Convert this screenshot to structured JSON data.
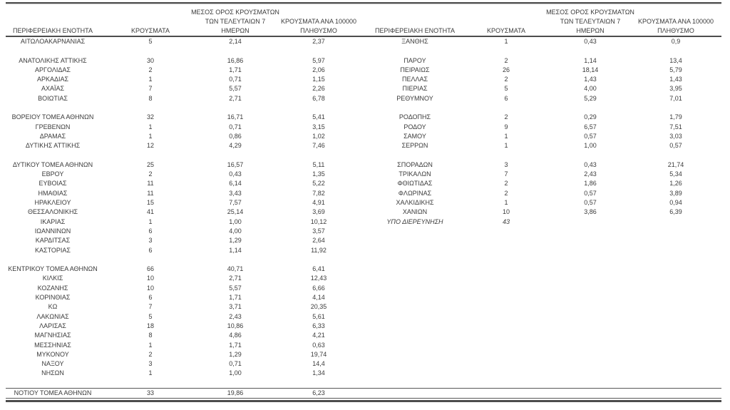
{
  "table": {
    "headers": {
      "region": "ΠΕΡΙΦΕΡΕΙΑΚΗ ΕΝΟΤΗΤΑ",
      "cases": "ΚΡΟΥΣΜΑΤΑ",
      "avg7_l1": "ΜΕΣΟΣ ΟΡΟΣ ΚΡΟΥΣΜΑΤΩΝ",
      "avg7_l2": "ΤΩΝ ΤΕΛΕΥΤΑΙΩΝ 7",
      "avg7_l3": "ΗΜΕΡΩΝ",
      "per100k_l1": "ΚΡΟΥΣΜΑΤΑ ΑΝΑ 100000",
      "per100k_l2": "ΠΛΗΘΥΣΜΟ"
    },
    "rows": [
      {
        "l": [
          "ΑΙΤΩΛΟΑΚΑΡΝΑΝΙΑΣ",
          "5",
          "2,14",
          "2,37"
        ],
        "r": [
          "ΞΑΝΘΗΣ",
          "1",
          "0,43",
          "0,9"
        ]
      },
      {
        "spacer": true
      },
      {
        "l": [
          "ΑΝΑΤΟΛΙΚΗΣ ΑΤΤΙΚΗΣ",
          "30",
          "16,86",
          "5,97"
        ],
        "r": [
          "ΠΑΡΟΥ",
          "2",
          "1,14",
          "13,4"
        ]
      },
      {
        "l": [
          "ΑΡΓΟΛΙΔΑΣ",
          "2",
          "1,71",
          "2,06"
        ],
        "r": [
          "ΠΕΙΡΑΙΩΣ",
          "26",
          "18,14",
          "5,79"
        ]
      },
      {
        "l": [
          "ΑΡΚΑΔΙΑΣ",
          "1",
          "0,71",
          "1,15"
        ],
        "r": [
          "ΠΕΛΛΑΣ",
          "2",
          "1,43",
          "1,43"
        ]
      },
      {
        "l": [
          "ΑΧΑΪΑΣ",
          "7",
          "5,57",
          "2,26"
        ],
        "r": [
          "ΠΙΕΡΙΑΣ",
          "5",
          "4,00",
          "3,95"
        ]
      },
      {
        "l": [
          "ΒΟΙΩΤΙΑΣ",
          "8",
          "2,71",
          "6,78"
        ],
        "r": [
          "ΡΕΘΥΜΝΟΥ",
          "6",
          "5,29",
          "7,01"
        ]
      },
      {
        "spacer": true
      },
      {
        "l": [
          "ΒΟΡΕΙΟΥ ΤΟΜΕΑ ΑΘΗΝΩΝ",
          "32",
          "16,71",
          "5,41"
        ],
        "r": [
          "ΡΟΔΟΠΗΣ",
          "2",
          "0,29",
          "1,79"
        ]
      },
      {
        "l": [
          "ΓΡΕΒΕΝΩΝ",
          "1",
          "0,71",
          "3,15"
        ],
        "r": [
          "ΡΟΔΟΥ",
          "9",
          "6,57",
          "7,51"
        ]
      },
      {
        "l": [
          "ΔΡΑΜΑΣ",
          "1",
          "0,86",
          "1,02"
        ],
        "r": [
          "ΣΑΜΟΥ",
          "1",
          "0,57",
          "3,03"
        ]
      },
      {
        "l": [
          "ΔΥΤΙΚΗΣ ΑΤΤΙΚΗΣ",
          "12",
          "4,29",
          "7,46"
        ],
        "r": [
          "ΣΕΡΡΩΝ",
          "1",
          "1,00",
          "0,57"
        ]
      },
      {
        "spacer": true
      },
      {
        "l": [
          "ΔΥΤΙΚΟΥ ΤΟΜΕΑ ΑΘΗΝΩΝ",
          "25",
          "16,57",
          "5,11"
        ],
        "r": [
          "ΣΠΟΡΑΔΩΝ",
          "3",
          "0,43",
          "21,74"
        ]
      },
      {
        "l": [
          "ΕΒΡΟΥ",
          "2",
          "0,43",
          "1,35"
        ],
        "r": [
          "ΤΡΙΚΑΛΩΝ",
          "7",
          "2,43",
          "5,34"
        ]
      },
      {
        "l": [
          "ΕΥΒΟΙΑΣ",
          "11",
          "6,14",
          "5,22"
        ],
        "r": [
          "ΦΘΙΩΤΙΔΑΣ",
          "2",
          "1,86",
          "1,26"
        ]
      },
      {
        "l": [
          "ΗΜΑΘΙΑΣ",
          "11",
          "3,43",
          "7,82"
        ],
        "r": [
          "ΦΛΩΡΙΝΑΣ",
          "2",
          "0,57",
          "3,89"
        ]
      },
      {
        "l": [
          "ΗΡΑΚΛΕΙΟΥ",
          "15",
          "7,57",
          "4,91"
        ],
        "r": [
          "ΧΑΛΚΙΔΙΚΗΣ",
          "1",
          "0,57",
          "0,94"
        ]
      },
      {
        "l": [
          "ΘΕΣΣΑΛΟΝΙΚΗΣ",
          "41",
          "25,14",
          "3,69"
        ],
        "r": [
          "ΧΑΝΙΩΝ",
          "10",
          "3,86",
          "6,39"
        ]
      },
      {
        "l": [
          "ΙΚΑΡΙΑΣ",
          "1",
          "1,00",
          "10,12"
        ],
        "r": [
          "ΥΠΟ ΔΙΕΡΕΥΝΗΣΗ",
          "43",
          "",
          ""
        ],
        "r_italic": true
      },
      {
        "l": [
          "ΙΩΑΝΝΙΝΩΝ",
          "6",
          "4,00",
          "3,57"
        ]
      },
      {
        "l": [
          "ΚΑΡΔΙΤΣΑΣ",
          "3",
          "1,29",
          "2,64"
        ]
      },
      {
        "l": [
          "ΚΑΣΤΟΡΙΑΣ",
          "6",
          "1,14",
          "11,92"
        ]
      },
      {
        "spacer": true
      },
      {
        "l": [
          "ΚΕΝΤΡΙΚΟΥ ΤΟΜΕΑ ΑΘΗΝΩΝ",
          "66",
          "40,71",
          "6,41"
        ]
      },
      {
        "l": [
          "ΚΙΛΚΙΣ",
          "10",
          "2,71",
          "12,43"
        ]
      },
      {
        "l": [
          "ΚΟΖΑΝΗΣ",
          "10",
          "5,57",
          "6,66"
        ]
      },
      {
        "l": [
          "ΚΟΡΙΝΘΙΑΣ",
          "6",
          "1,71",
          "4,14"
        ]
      },
      {
        "l": [
          "ΚΩ",
          "7",
          "3,71",
          "20,35"
        ]
      },
      {
        "l": [
          "ΛΑΚΩΝΙΑΣ",
          "5",
          "2,43",
          "5,61"
        ]
      },
      {
        "l": [
          "ΛΑΡΙΣΑΣ",
          "18",
          "10,86",
          "6,33"
        ]
      },
      {
        "l": [
          "ΜΑΓΝΗΣΙΑΣ",
          "8",
          "4,86",
          "4,21"
        ]
      },
      {
        "l": [
          "ΜΕΣΣΗΝΙΑΣ",
          "1",
          "1,71",
          "0,63"
        ]
      },
      {
        "l": [
          "ΜΥΚΟΝΟΥ",
          "2",
          "1,29",
          "19,74"
        ]
      },
      {
        "l": [
          "ΝΑΞΟΥ",
          "3",
          "0,71",
          "14,4"
        ]
      },
      {
        "l": [
          "ΝΗΣΩΝ",
          "1",
          "1,00",
          "1,34"
        ]
      },
      {
        "spacer": true
      },
      {
        "l": [
          "ΝΟΤΙΟΥ ΤΟΜΕΑ ΑΘΗΝΩΝ",
          "33",
          "19,86",
          "6,23"
        ],
        "total": true
      }
    ]
  }
}
